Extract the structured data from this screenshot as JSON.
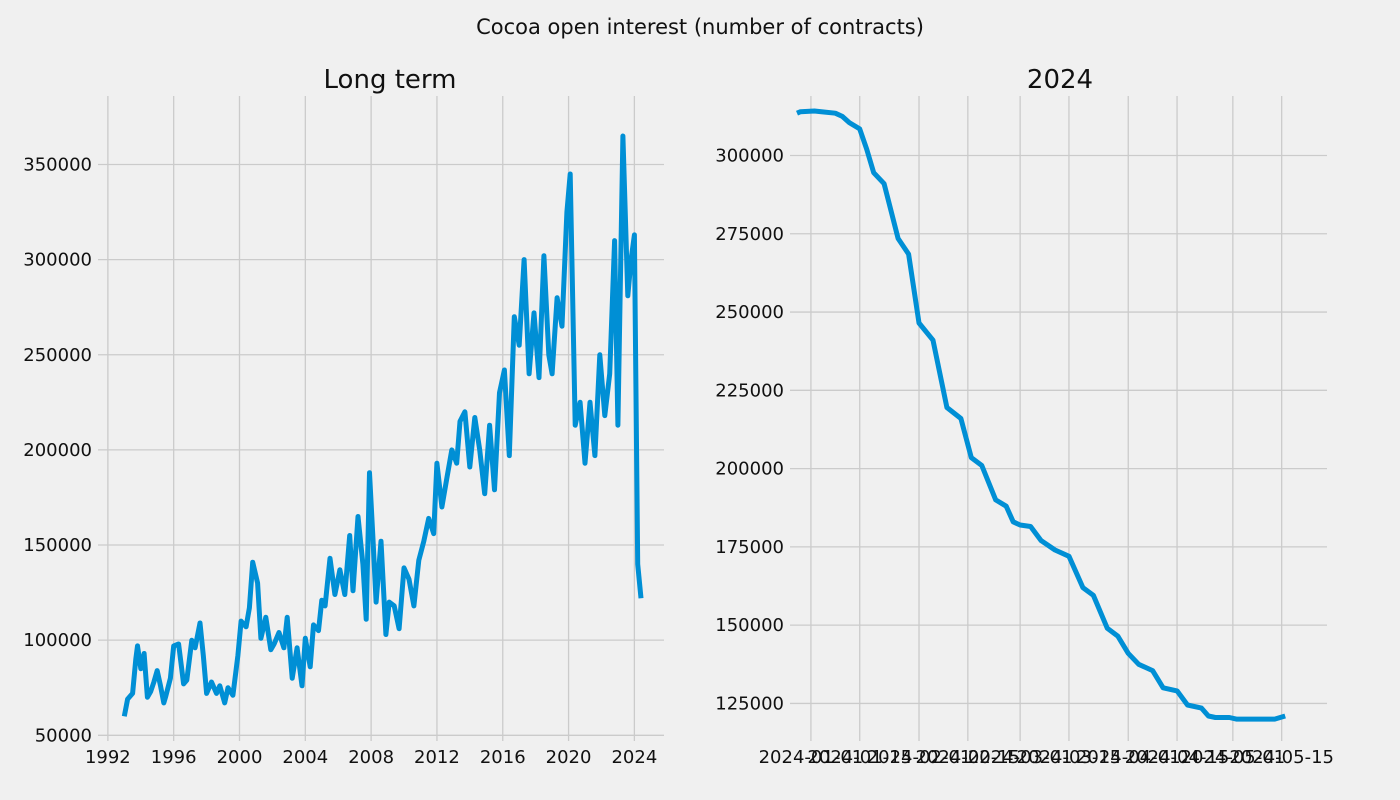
{
  "figure": {
    "title": "Cocoa open interest (number of contracts)",
    "colors": {
      "background": "#f0f0f0",
      "grid": "#cbcbcb",
      "line": "#008fd5",
      "text": "#111111"
    }
  },
  "chart_data": [
    {
      "type": "line",
      "title": "Long term",
      "xlabel": "",
      "ylabel": "",
      "x_kind": "year",
      "xlim": [
        1991.4,
        2025.8
      ],
      "ylim": [
        47000,
        386000
      ],
      "x_ticks": [
        1992,
        1996,
        2000,
        2004,
        2008,
        2012,
        2016,
        2020,
        2024
      ],
      "x_tick_labels": [
        "1992",
        "1996",
        "2000",
        "2004",
        "2008",
        "2012",
        "2016",
        "2020",
        "2024"
      ],
      "y_ticks": [
        50000,
        100000,
        150000,
        200000,
        250000,
        300000,
        350000
      ],
      "y_tick_labels": [
        "50000",
        "100000",
        "150000",
        "200000",
        "250000",
        "300000",
        "350000"
      ],
      "grid": true,
      "series": [
        {
          "x": [
            1993.0,
            1993.2,
            1993.5,
            1993.7,
            1993.8,
            1994.0,
            1994.2,
            1994.4,
            1994.6,
            1994.8,
            1995.0,
            1995.2,
            1995.4,
            1995.5,
            1995.8,
            1996.0,
            1996.3,
            1996.6,
            1996.8,
            1997.1,
            1997.3,
            1997.6,
            1997.8,
            1998.0,
            1998.3,
            1998.6,
            1998.8,
            1999.1,
            1999.3,
            1999.6,
            1999.9,
            2000.1,
            2000.4,
            2000.6,
            2000.8,
            2001.1,
            2001.3,
            2001.6,
            2001.9,
            2002.1,
            2002.4,
            2002.7,
            2002.9,
            2003.2,
            2003.5,
            2003.8,
            2004.0,
            2004.3,
            2004.5,
            2004.8,
            2005.0,
            2005.2,
            2005.5,
            2005.8,
            2006.1,
            2006.4,
            2006.7,
            2006.9,
            2007.2,
            2007.5,
            2007.7,
            2007.9,
            2008.1,
            2008.3,
            2008.6,
            2008.9,
            2009.1,
            2009.4,
            2009.7,
            2010.0,
            2010.3,
            2010.6,
            2010.9,
            2011.2,
            2011.5,
            2011.8,
            2012.0,
            2012.3,
            2012.6,
            2012.9,
            2013.2,
            2013.4,
            2013.7,
            2014.0,
            2014.3,
            2014.6,
            2014.9,
            2015.2,
            2015.5,
            2015.8,
            2016.1,
            2016.4,
            2016.7,
            2017.0,
            2017.3,
            2017.6,
            2017.9,
            2018.2,
            2018.5,
            2018.8,
            2019.0,
            2019.3,
            2019.6,
            2019.9,
            2020.1,
            2020.4,
            2020.7,
            2021.0,
            2021.3,
            2021.6,
            2021.9,
            2022.2,
            2022.5,
            2022.8,
            2023.0,
            2023.3,
            2023.6,
            2023.8,
            2024.0,
            2024.2,
            2024.4
          ],
          "y": [
            60000,
            69000,
            72000,
            90000,
            97000,
            85000,
            93000,
            70000,
            73000,
            78000,
            84000,
            76000,
            67000,
            70000,
            80000,
            97000,
            98000,
            77000,
            79000,
            100000,
            96000,
            109000,
            92000,
            72000,
            78000,
            72000,
            76000,
            67000,
            75000,
            71000,
            92000,
            110000,
            107000,
            117000,
            141000,
            130000,
            101000,
            112000,
            95000,
            98000,
            104000,
            96000,
            112000,
            80000,
            96000,
            76000,
            101000,
            86000,
            108000,
            105000,
            121000,
            118000,
            143000,
            124000,
            137000,
            124000,
            155000,
            126000,
            165000,
            140000,
            111000,
            188000,
            155000,
            120000,
            152000,
            103000,
            120000,
            118000,
            106000,
            138000,
            132000,
            118000,
            142000,
            152000,
            164000,
            156000,
            193000,
            170000,
            185000,
            200000,
            193000,
            215000,
            220000,
            191000,
            217000,
            200000,
            177000,
            213000,
            179000,
            230000,
            242000,
            197000,
            270000,
            255000,
            300000,
            240000,
            272000,
            238000,
            302000,
            250000,
            240000,
            280000,
            265000,
            325000,
            345000,
            213000,
            225000,
            193000,
            225000,
            197000,
            250000,
            218000,
            240000,
            310000,
            213000,
            365000,
            281000,
            300000,
            313000,
            140000,
            122000
          ]
        }
      ]
    },
    {
      "type": "line",
      "title": "2024",
      "xlabel": "",
      "ylabel": "",
      "x_kind": "date",
      "xlim": [
        "2023-12-26",
        "2024-05-28"
      ],
      "ylim": [
        113000,
        319000
      ],
      "x_ticks": [
        "2024-01-01",
        "2024-01-15",
        "2024-02-01",
        "2024-02-15",
        "2024-03-01",
        "2024-03-15",
        "2024-04-01",
        "2024-04-15",
        "2024-05-01",
        "2024-05-15"
      ],
      "x_tick_labels": [
        "2024-01-01",
        "2024-01-15",
        "2024-02-01",
        "2024-02-15",
        "2024-03-01",
        "2024-03-15",
        "2024-04-01",
        "2024-04-15",
        "2024-05-01",
        "2024-05-15"
      ],
      "y_ticks": [
        125000,
        150000,
        175000,
        200000,
        225000,
        250000,
        275000,
        300000
      ],
      "y_tick_labels": [
        "125000",
        "150000",
        "175000",
        "200000",
        "225000",
        "250000",
        "275000",
        "300000"
      ],
      "grid": true,
      "series": [
        {
          "x": [
            "2023-12-28",
            "2023-12-29",
            "2024-01-02",
            "2024-01-04",
            "2024-01-08",
            "2024-01-10",
            "2024-01-12",
            "2024-01-15",
            "2024-01-17",
            "2024-01-19",
            "2024-01-22",
            "2024-01-26",
            "2024-01-29",
            "2024-02-01",
            "2024-02-05",
            "2024-02-09",
            "2024-02-13",
            "2024-02-16",
            "2024-02-19",
            "2024-02-23",
            "2024-02-26",
            "2024-02-28",
            "2024-03-01",
            "2024-03-04",
            "2024-03-07",
            "2024-03-11",
            "2024-03-15",
            "2024-03-19",
            "2024-03-22",
            "2024-03-26",
            "2024-03-29",
            "2024-04-01",
            "2024-04-04",
            "2024-04-08",
            "2024-04-11",
            "2024-04-15",
            "2024-04-18",
            "2024-04-22",
            "2024-04-24",
            "2024-04-26",
            "2024-04-30",
            "2024-05-02",
            "2024-05-06",
            "2024-05-10",
            "2024-05-13",
            "2024-05-16"
          ],
          "y": [
            313500,
            314000,
            314200,
            314000,
            313500,
            312500,
            310500,
            308500,
            302000,
            294500,
            291000,
            273500,
            268500,
            246500,
            241000,
            219500,
            216000,
            203500,
            201000,
            190000,
            188000,
            183000,
            182000,
            181500,
            177000,
            174000,
            172000,
            162000,
            159500,
            149000,
            146500,
            141000,
            137500,
            135500,
            130000,
            129000,
            124500,
            123500,
            121000,
            120500,
            120500,
            120000,
            120000,
            120000,
            120000,
            121000
          ]
        }
      ]
    }
  ]
}
